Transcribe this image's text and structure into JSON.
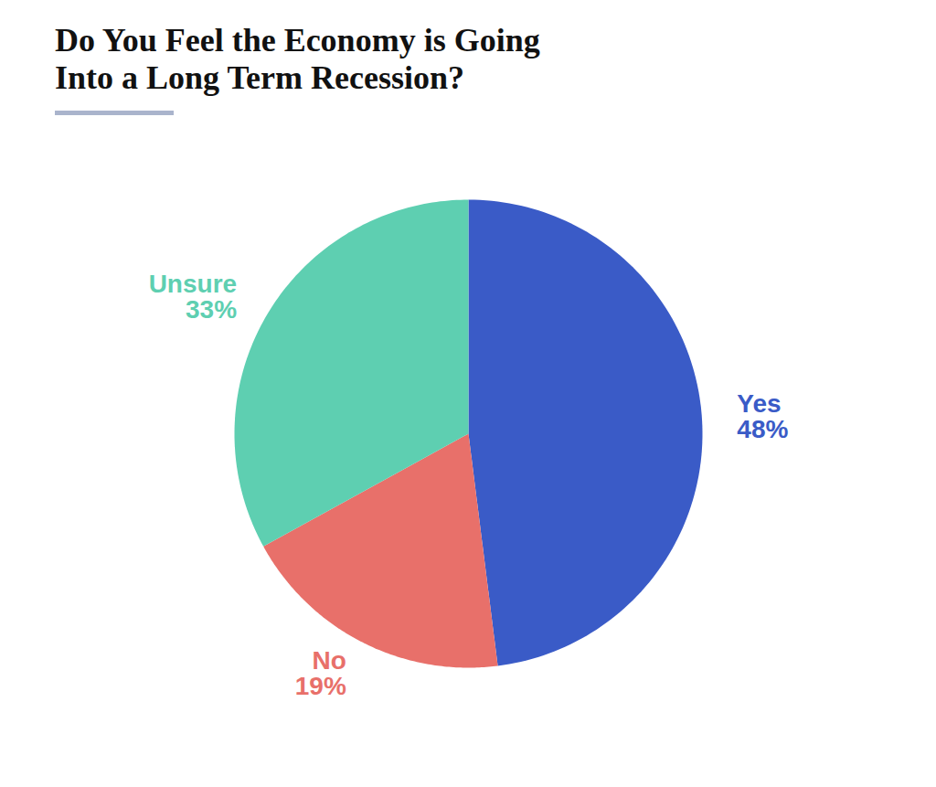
{
  "chart_data": {
    "type": "pie",
    "title": "Do You Feel the Economy is Going\nInto a Long Term Recession?",
    "categories": [
      "Yes",
      "No",
      "Unsure"
    ],
    "values": [
      48,
      19,
      33
    ],
    "value_labels": [
      "48%",
      "19%",
      "33%"
    ],
    "colors": [
      "#3a5bc7",
      "#e8706a",
      "#5ecfb1"
    ],
    "data_labels": true
  }
}
